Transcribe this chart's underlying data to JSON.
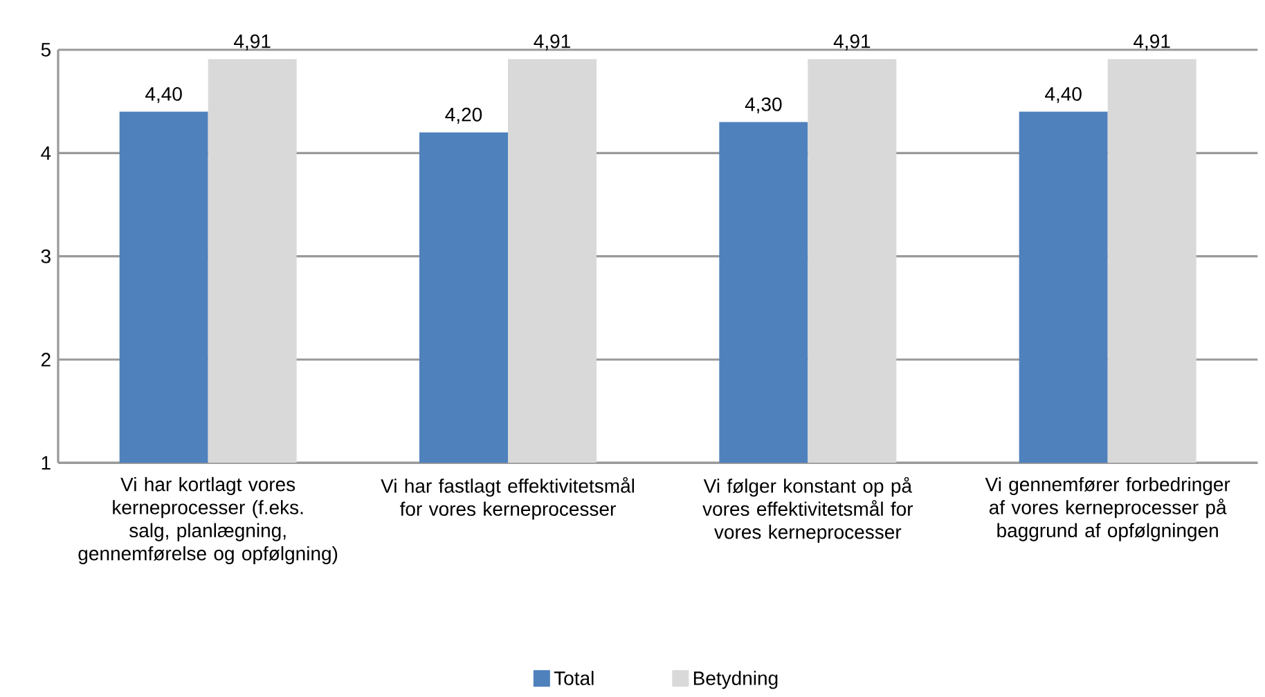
{
  "chart_data": {
    "type": "bar",
    "categories": [
      "Vi har kortlagt vores kerneprocesser (f.eks. salg, planlægning, gennemførelse og opfølgning)",
      "Vi har fastlagt effektivitetsmål for vores kerneprocesser",
      "Vi følger konstant op på vores effektivitetsmål for vores kerneprocesser",
      "Vi gennemfører forbedringer af vores kerneprocesser på baggrund af opfølgningen"
    ],
    "series": [
      {
        "name": "Total",
        "color": "#4f81bd",
        "values": [
          4.4,
          4.2,
          4.3,
          4.4
        ],
        "value_labels": [
          "4,40",
          "4,20",
          "4,30",
          "4,40"
        ]
      },
      {
        "name": "Betydning",
        "color": "#d9d9d9",
        "values": [
          4.91,
          4.91,
          4.91,
          4.91
        ],
        "value_labels": [
          "4,91",
          "4,91",
          "4,91",
          "4,91"
        ]
      }
    ],
    "ylim": [
      1,
      5
    ],
    "yticks": [
      1,
      2,
      3,
      4,
      5
    ],
    "grid": "y",
    "legend": "bottom"
  }
}
